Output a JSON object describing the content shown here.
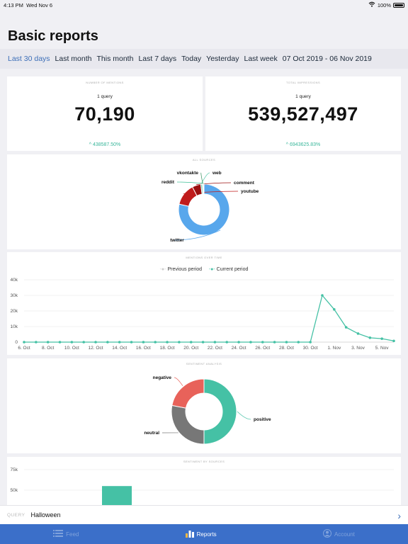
{
  "status_bar": {
    "time": "4:13 PM",
    "date": "Wed Nov 6",
    "battery": "100%",
    "battery_level": 1.0
  },
  "page": {
    "title": "Basic reports"
  },
  "date_ranges": {
    "items": [
      "Last 30 days",
      "Last month",
      "This month",
      "Last 7 days",
      "Today",
      "Yesterday",
      "Last week",
      "07 Oct 2019 - 06 Nov 2019"
    ],
    "active_index": 0
  },
  "mentions_card": {
    "caption": "NUMBER OF MENTIONS",
    "query_count": "1 query",
    "value": "70,190",
    "delta": "438587.50%"
  },
  "impressions_card": {
    "caption": "TOTAL IMPRESSIONS",
    "query_count": "1 query",
    "value": "539,527,497",
    "delta": "6943625.83%"
  },
  "sources_card": {
    "caption": "ALL SOURCES"
  },
  "timeline_card": {
    "caption": "MENTIONS OVER TIME",
    "legend_previous": "Previous period",
    "legend_current": "Current period"
  },
  "sentiment_card": {
    "caption": "SENTIMENT ANALYSIS"
  },
  "sentiment_sources_card": {
    "caption": "SENTIMENT BY SOURCES"
  },
  "colors": {
    "accent": "#3d6fb8",
    "teal": "#45c1a5",
    "red": "#e8625a",
    "gray": "#777777",
    "twitter": "#58a7ec",
    "youtube": "#c01c1c",
    "tabbar": "#3b6fc9"
  },
  "query_bar": {
    "label": "QUERY",
    "value": "Halloween"
  },
  "tabs": [
    {
      "label": "Feed",
      "icon": "list-icon"
    },
    {
      "label": "Reports",
      "icon": "bar-chart-icon"
    },
    {
      "label": "Account",
      "icon": "account-icon"
    }
  ],
  "active_tab": 1,
  "chart_data": [
    {
      "type": "pie",
      "title": "ALL SOURCES",
      "categories": [
        "twitter",
        "youtube",
        "comment",
        "web",
        "vkontakte",
        "reddit"
      ],
      "values": [
        78.5,
        14,
        5.5,
        1,
        0.5,
        0.5
      ]
    },
    {
      "type": "line",
      "title": "MENTIONS OVER TIME",
      "x": [
        "6. Oct",
        "7. Oct",
        "8. Oct",
        "9. Oct",
        "10. Oct",
        "11. Oct",
        "12. Oct",
        "13. Oct",
        "14. Oct",
        "15. Oct",
        "16. Oct",
        "17. Oct",
        "18. Oct",
        "19. Oct",
        "20. Oct",
        "21. Oct",
        "22. Oct",
        "23. Oct",
        "24. Oct",
        "25. Oct",
        "26. Oct",
        "27. Oct",
        "28. Oct",
        "29. Oct",
        "30. Oct",
        "31. Oct",
        "1. Nov",
        "2. Nov",
        "3. Nov",
        "4. Nov",
        "5. Nov",
        "6. Nov"
      ],
      "x_tick_labels": [
        "6. Oct",
        "8. Oct",
        "10. Oct",
        "12. Oct",
        "14. Oct",
        "16. Oct",
        "18. Oct",
        "20. Oct",
        "22. Oct",
        "24. Oct",
        "26. Oct",
        "28. Oct",
        "30. Oct",
        "1. Nov",
        "3. Nov",
        "5. Nov"
      ],
      "y_ticks": [
        "0",
        "10k",
        "20k",
        "30k",
        "40k"
      ],
      "ylim": [
        0,
        40000
      ],
      "series": [
        {
          "name": "Current period",
          "values": [
            0,
            0,
            0,
            0,
            0,
            0,
            0,
            0,
            0,
            0,
            0,
            0,
            0,
            0,
            0,
            0,
            0,
            0,
            0,
            0,
            0,
            0,
            0,
            0,
            0,
            30000,
            21000,
            9500,
            5500,
            2800,
            2200,
            800
          ]
        },
        {
          "name": "Previous period",
          "values": [
            0,
            0,
            0,
            0,
            0,
            0,
            0,
            0,
            0,
            0,
            0,
            0,
            0,
            0,
            0,
            0,
            0,
            0,
            0,
            0,
            0,
            0,
            0,
            0,
            0,
            0,
            0,
            0,
            0,
            0,
            0,
            0
          ]
        }
      ],
      "legend": "top-center",
      "grid": true
    },
    {
      "type": "pie",
      "title": "SENTIMENT ANALYSIS",
      "categories": [
        "positive",
        "neutral",
        "negative"
      ],
      "values": [
        50,
        28,
        22
      ]
    },
    {
      "type": "bar",
      "title": "SENTIMENT BY SOURCES",
      "y_ticks": [
        "50k",
        "75k"
      ],
      "values": [
        55000
      ],
      "ylim": [
        0,
        80000
      ]
    }
  ]
}
